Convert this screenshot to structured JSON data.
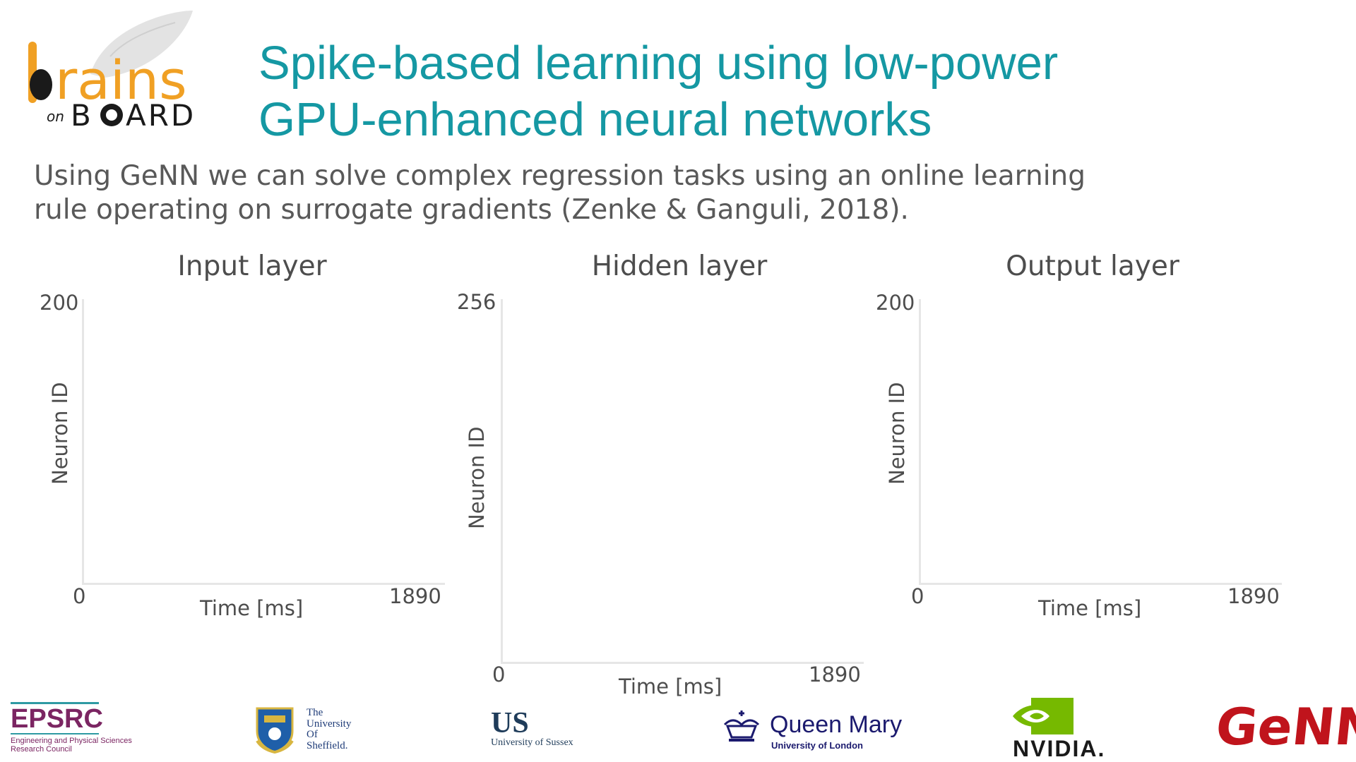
{
  "header": {
    "logo_name": "brains on BOARD logo",
    "title_lines": [
      "Spike-based learning using low-power",
      "GPU-enhanced neural networks"
    ],
    "subtitle_lines": [
      "Using GeNN we can solve complex regression tasks using an online learning",
      "rule operating on surrogate gradients (Zenke & Ganguli, 2018)."
    ]
  },
  "chart_data": [
    {
      "type": "scatter",
      "title": "Input layer",
      "xlabel": "Time [ms]",
      "ylabel": "Neuron ID",
      "xlim": [
        0,
        1890
      ],
      "ylim": [
        0,
        200
      ],
      "x_ticks": [
        "0",
        "1890"
      ],
      "y_ticks": [
        "200"
      ],
      "grid": false,
      "series": []
    },
    {
      "type": "scatter",
      "title": "Hidden layer",
      "xlabel": "Time [ms]",
      "ylabel": "Neuron ID",
      "xlim": [
        0,
        1890
      ],
      "ylim": [
        0,
        256
      ],
      "x_ticks": [
        "0",
        "1890"
      ],
      "y_ticks": [
        "256"
      ],
      "grid": false,
      "series": []
    },
    {
      "type": "scatter",
      "title": "Output layer",
      "xlabel": "Time [ms]",
      "ylabel": "Neuron ID",
      "xlim": [
        0,
        1890
      ],
      "ylim": [
        0,
        200
      ],
      "x_ticks": [
        "0",
        "1890"
      ],
      "y_ticks": [
        "200"
      ],
      "grid": false,
      "series": []
    }
  ],
  "footer": {
    "epsrc": {
      "name": "EPSRC",
      "line1": "Engineering and Physical Sciences",
      "line2": "Research Council",
      "color": "#7b2562"
    },
    "sheffield": {
      "line1": "The",
      "line2": "University",
      "line3": "Of",
      "line4": "Sheffield."
    },
    "sussex": {
      "name": "US",
      "line": "University of Sussex",
      "color": "#1f3c5a"
    },
    "qmul": {
      "name": "Queen Mary",
      "line": "University of London",
      "color": "#1b1a6e"
    },
    "nvidia": {
      "name": "NVIDIA.",
      "color": "#76b900"
    },
    "genn": {
      "name": "GeNN",
      "color": "#c0141c"
    }
  }
}
